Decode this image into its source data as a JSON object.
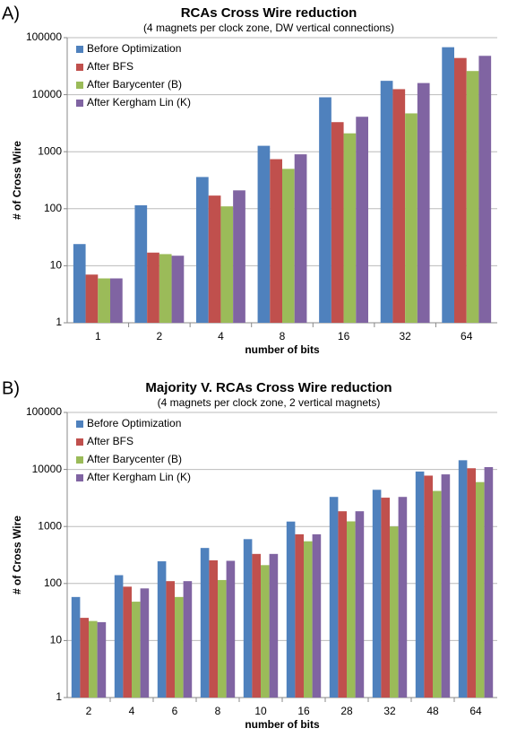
{
  "chart_data": [
    {
      "type": "bar",
      "panel": "A)",
      "title": "RCAs Cross Wire reduction",
      "subtitle": "(4 magnets per clock zone, DW vertical connections)",
      "xlabel": "number of bits",
      "ylabel": "# of Cross Wire",
      "log_scale": true,
      "grid": true,
      "legend": "top-left",
      "categories": [
        "1",
        "2",
        "4",
        "8",
        "16",
        "32",
        "64"
      ],
      "series": [
        {
          "name": "Before Optimization",
          "color": "#4f81bd",
          "values": [
            24,
            115,
            360,
            1270,
            9000,
            17500,
            68000
          ]
        },
        {
          "name": "After BFS",
          "color": "#c0504d",
          "values": [
            7,
            17,
            170,
            740,
            3300,
            12500,
            44000
          ]
        },
        {
          "name": "After Barycenter (B)",
          "color": "#9bbb59",
          "values": [
            6,
            16,
            110,
            500,
            2100,
            4700,
            26000
          ]
        },
        {
          "name": "After Kergham Lin (K)",
          "color": "#8064a2",
          "values": [
            6,
            15,
            210,
            900,
            4100,
            16000,
            48000
          ]
        }
      ],
      "ylim": [
        1,
        100000
      ],
      "yticks": [
        1,
        10,
        100,
        1000,
        10000,
        100000
      ]
    },
    {
      "type": "bar",
      "panel": "B)",
      "title": "Majority V. RCAs Cross Wire reduction",
      "subtitle": "(4 magnets per clock zone, 2 vertical magnets)",
      "xlabel": "number of bits",
      "ylabel": "# of Cross Wire",
      "log_scale": true,
      "grid": true,
      "legend": "top-left",
      "categories": [
        "2",
        "4",
        "6",
        "8",
        "10",
        "16",
        "28",
        "32",
        "48",
        "64"
      ],
      "series": [
        {
          "name": "Before Optimization",
          "color": "#4f81bd",
          "values": [
            58,
            140,
            245,
            420,
            600,
            1220,
            3300,
            4400,
            9200,
            14500
          ]
        },
        {
          "name": "After BFS",
          "color": "#c0504d",
          "values": [
            25,
            88,
            110,
            255,
            330,
            730,
            1850,
            3200,
            7800,
            10500
          ]
        },
        {
          "name": "After Barycenter (B)",
          "color": "#9bbb59",
          "values": [
            22,
            48,
            58,
            115,
            210,
            550,
            1230,
            1000,
            4200,
            6000
          ]
        },
        {
          "name": "After Kergham Lin (K)",
          "color": "#8064a2",
          "values": [
            21,
            82,
            110,
            250,
            330,
            730,
            1850,
            3300,
            8200,
            11000
          ]
        }
      ],
      "ylim": [
        1,
        100000
      ],
      "yticks": [
        1,
        10,
        100,
        1000,
        10000,
        100000
      ]
    }
  ]
}
